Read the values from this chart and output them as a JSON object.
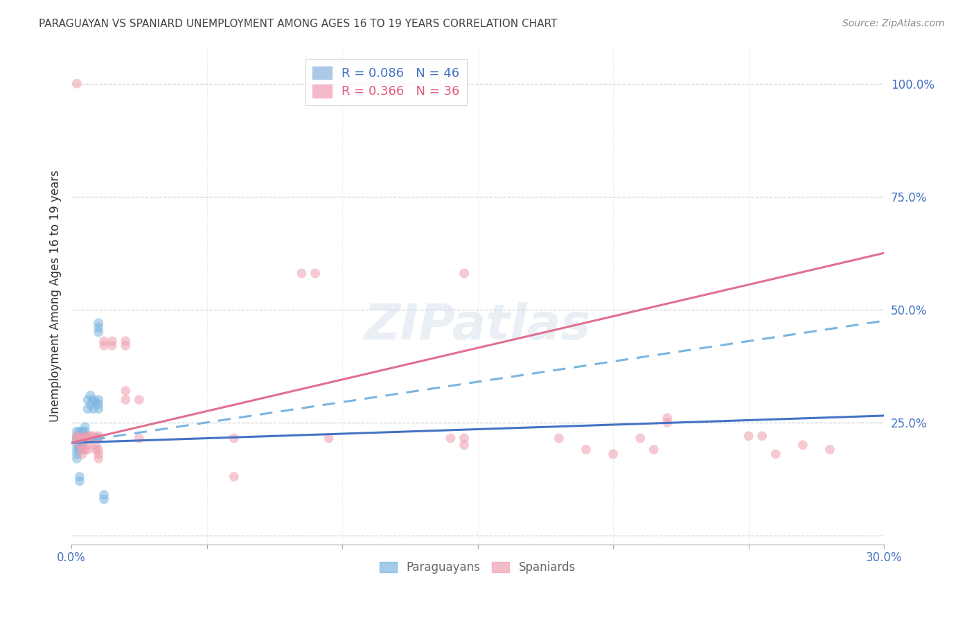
{
  "title": "PARAGUAYAN VS SPANIARD UNEMPLOYMENT AMONG AGES 16 TO 19 YEARS CORRELATION CHART",
  "source": "Source: ZipAtlas.com",
  "ylabel": "Unemployment Among Ages 16 to 19 years",
  "xlim": [
    0.0,
    0.3
  ],
  "ylim": [
    -0.02,
    1.08
  ],
  "xticks": [
    0.0,
    0.05,
    0.1,
    0.15,
    0.2,
    0.25,
    0.3
  ],
  "xticklabels_show": [
    "0.0%",
    "",
    "",
    "",
    "",
    "",
    "30.0%"
  ],
  "yticks": [
    0.0,
    0.25,
    0.5,
    0.75,
    1.0
  ],
  "yticklabels": [
    "",
    "25.0%",
    "50.0%",
    "75.0%",
    "100.0%"
  ],
  "paraguayan_dots": [
    [
      0.002,
      0.215
    ],
    [
      0.002,
      0.22
    ],
    [
      0.002,
      0.21
    ],
    [
      0.002,
      0.2
    ],
    [
      0.002,
      0.19
    ],
    [
      0.002,
      0.18
    ],
    [
      0.002,
      0.23
    ],
    [
      0.002,
      0.17
    ],
    [
      0.003,
      0.215
    ],
    [
      0.003,
      0.22
    ],
    [
      0.003,
      0.21
    ],
    [
      0.003,
      0.2
    ],
    [
      0.003,
      0.23
    ],
    [
      0.003,
      0.19
    ],
    [
      0.004,
      0.215
    ],
    [
      0.004,
      0.22
    ],
    [
      0.004,
      0.21
    ],
    [
      0.004,
      0.23
    ],
    [
      0.004,
      0.2
    ],
    [
      0.005,
      0.215
    ],
    [
      0.005,
      0.22
    ],
    [
      0.005,
      0.21
    ],
    [
      0.005,
      0.23
    ],
    [
      0.005,
      0.24
    ],
    [
      0.006,
      0.215
    ],
    [
      0.006,
      0.22
    ],
    [
      0.006,
      0.28
    ],
    [
      0.006,
      0.3
    ],
    [
      0.007,
      0.29
    ],
    [
      0.007,
      0.31
    ],
    [
      0.008,
      0.28
    ],
    [
      0.008,
      0.3
    ],
    [
      0.009,
      0.295
    ],
    [
      0.009,
      0.215
    ],
    [
      0.01,
      0.215
    ],
    [
      0.01,
      0.28
    ],
    [
      0.01,
      0.29
    ],
    [
      0.01,
      0.3
    ],
    [
      0.01,
      0.45
    ],
    [
      0.01,
      0.46
    ],
    [
      0.01,
      0.47
    ],
    [
      0.012,
      0.08
    ],
    [
      0.012,
      0.09
    ],
    [
      0.006,
      0.215
    ],
    [
      0.003,
      0.12
    ],
    [
      0.003,
      0.13
    ]
  ],
  "spaniard_dots": [
    [
      0.002,
      0.215
    ],
    [
      0.002,
      0.22
    ],
    [
      0.003,
      0.215
    ],
    [
      0.003,
      0.2
    ],
    [
      0.004,
      0.19
    ],
    [
      0.004,
      0.18
    ],
    [
      0.004,
      0.215
    ],
    [
      0.005,
      0.215
    ],
    [
      0.005,
      0.22
    ],
    [
      0.005,
      0.19
    ],
    [
      0.006,
      0.215
    ],
    [
      0.006,
      0.2
    ],
    [
      0.006,
      0.19
    ],
    [
      0.007,
      0.215
    ],
    [
      0.007,
      0.22
    ],
    [
      0.008,
      0.215
    ],
    [
      0.008,
      0.22
    ],
    [
      0.009,
      0.2
    ],
    [
      0.009,
      0.19
    ],
    [
      0.01,
      0.215
    ],
    [
      0.01,
      0.22
    ],
    [
      0.01,
      0.19
    ],
    [
      0.01,
      0.18
    ],
    [
      0.01,
      0.17
    ],
    [
      0.012,
      0.42
    ],
    [
      0.012,
      0.43
    ],
    [
      0.015,
      0.42
    ],
    [
      0.015,
      0.43
    ],
    [
      0.02,
      0.42
    ],
    [
      0.02,
      0.43
    ],
    [
      0.02,
      0.32
    ],
    [
      0.02,
      0.3
    ],
    [
      0.025,
      0.3
    ],
    [
      0.025,
      0.215
    ],
    [
      0.06,
      0.215
    ],
    [
      0.06,
      0.13
    ],
    [
      0.002,
      1.0
    ],
    [
      0.14,
      0.215
    ],
    [
      0.145,
      0.215
    ],
    [
      0.145,
      0.58
    ],
    [
      0.145,
      0.2
    ],
    [
      0.18,
      0.215
    ],
    [
      0.19,
      0.19
    ],
    [
      0.2,
      0.18
    ],
    [
      0.21,
      0.215
    ],
    [
      0.215,
      0.19
    ],
    [
      0.22,
      0.25
    ],
    [
      0.22,
      0.26
    ],
    [
      0.25,
      0.22
    ],
    [
      0.255,
      0.22
    ],
    [
      0.26,
      0.18
    ],
    [
      0.27,
      0.2
    ],
    [
      0.28,
      0.19
    ],
    [
      0.085,
      0.58
    ],
    [
      0.09,
      0.58
    ],
    [
      0.095,
      0.215
    ]
  ],
  "paraguayan_color": "#7ab5e0",
  "spaniard_color": "#f0a0b0",
  "dot_size": 100,
  "dot_alpha": 0.55,
  "blue_solid_line": [
    [
      0.0,
      0.205
    ],
    [
      0.3,
      0.265
    ]
  ],
  "blue_dashed_line": [
    [
      0.0,
      0.205
    ],
    [
      0.3,
      0.475
    ]
  ],
  "pink_solid_line": [
    [
      0.0,
      0.205
    ],
    [
      0.3,
      0.625
    ]
  ],
  "background_color": "#ffffff",
  "grid_color": "#d0d0d0",
  "title_color": "#444444",
  "tick_color": "#4472c4",
  "source_color": "#888888"
}
